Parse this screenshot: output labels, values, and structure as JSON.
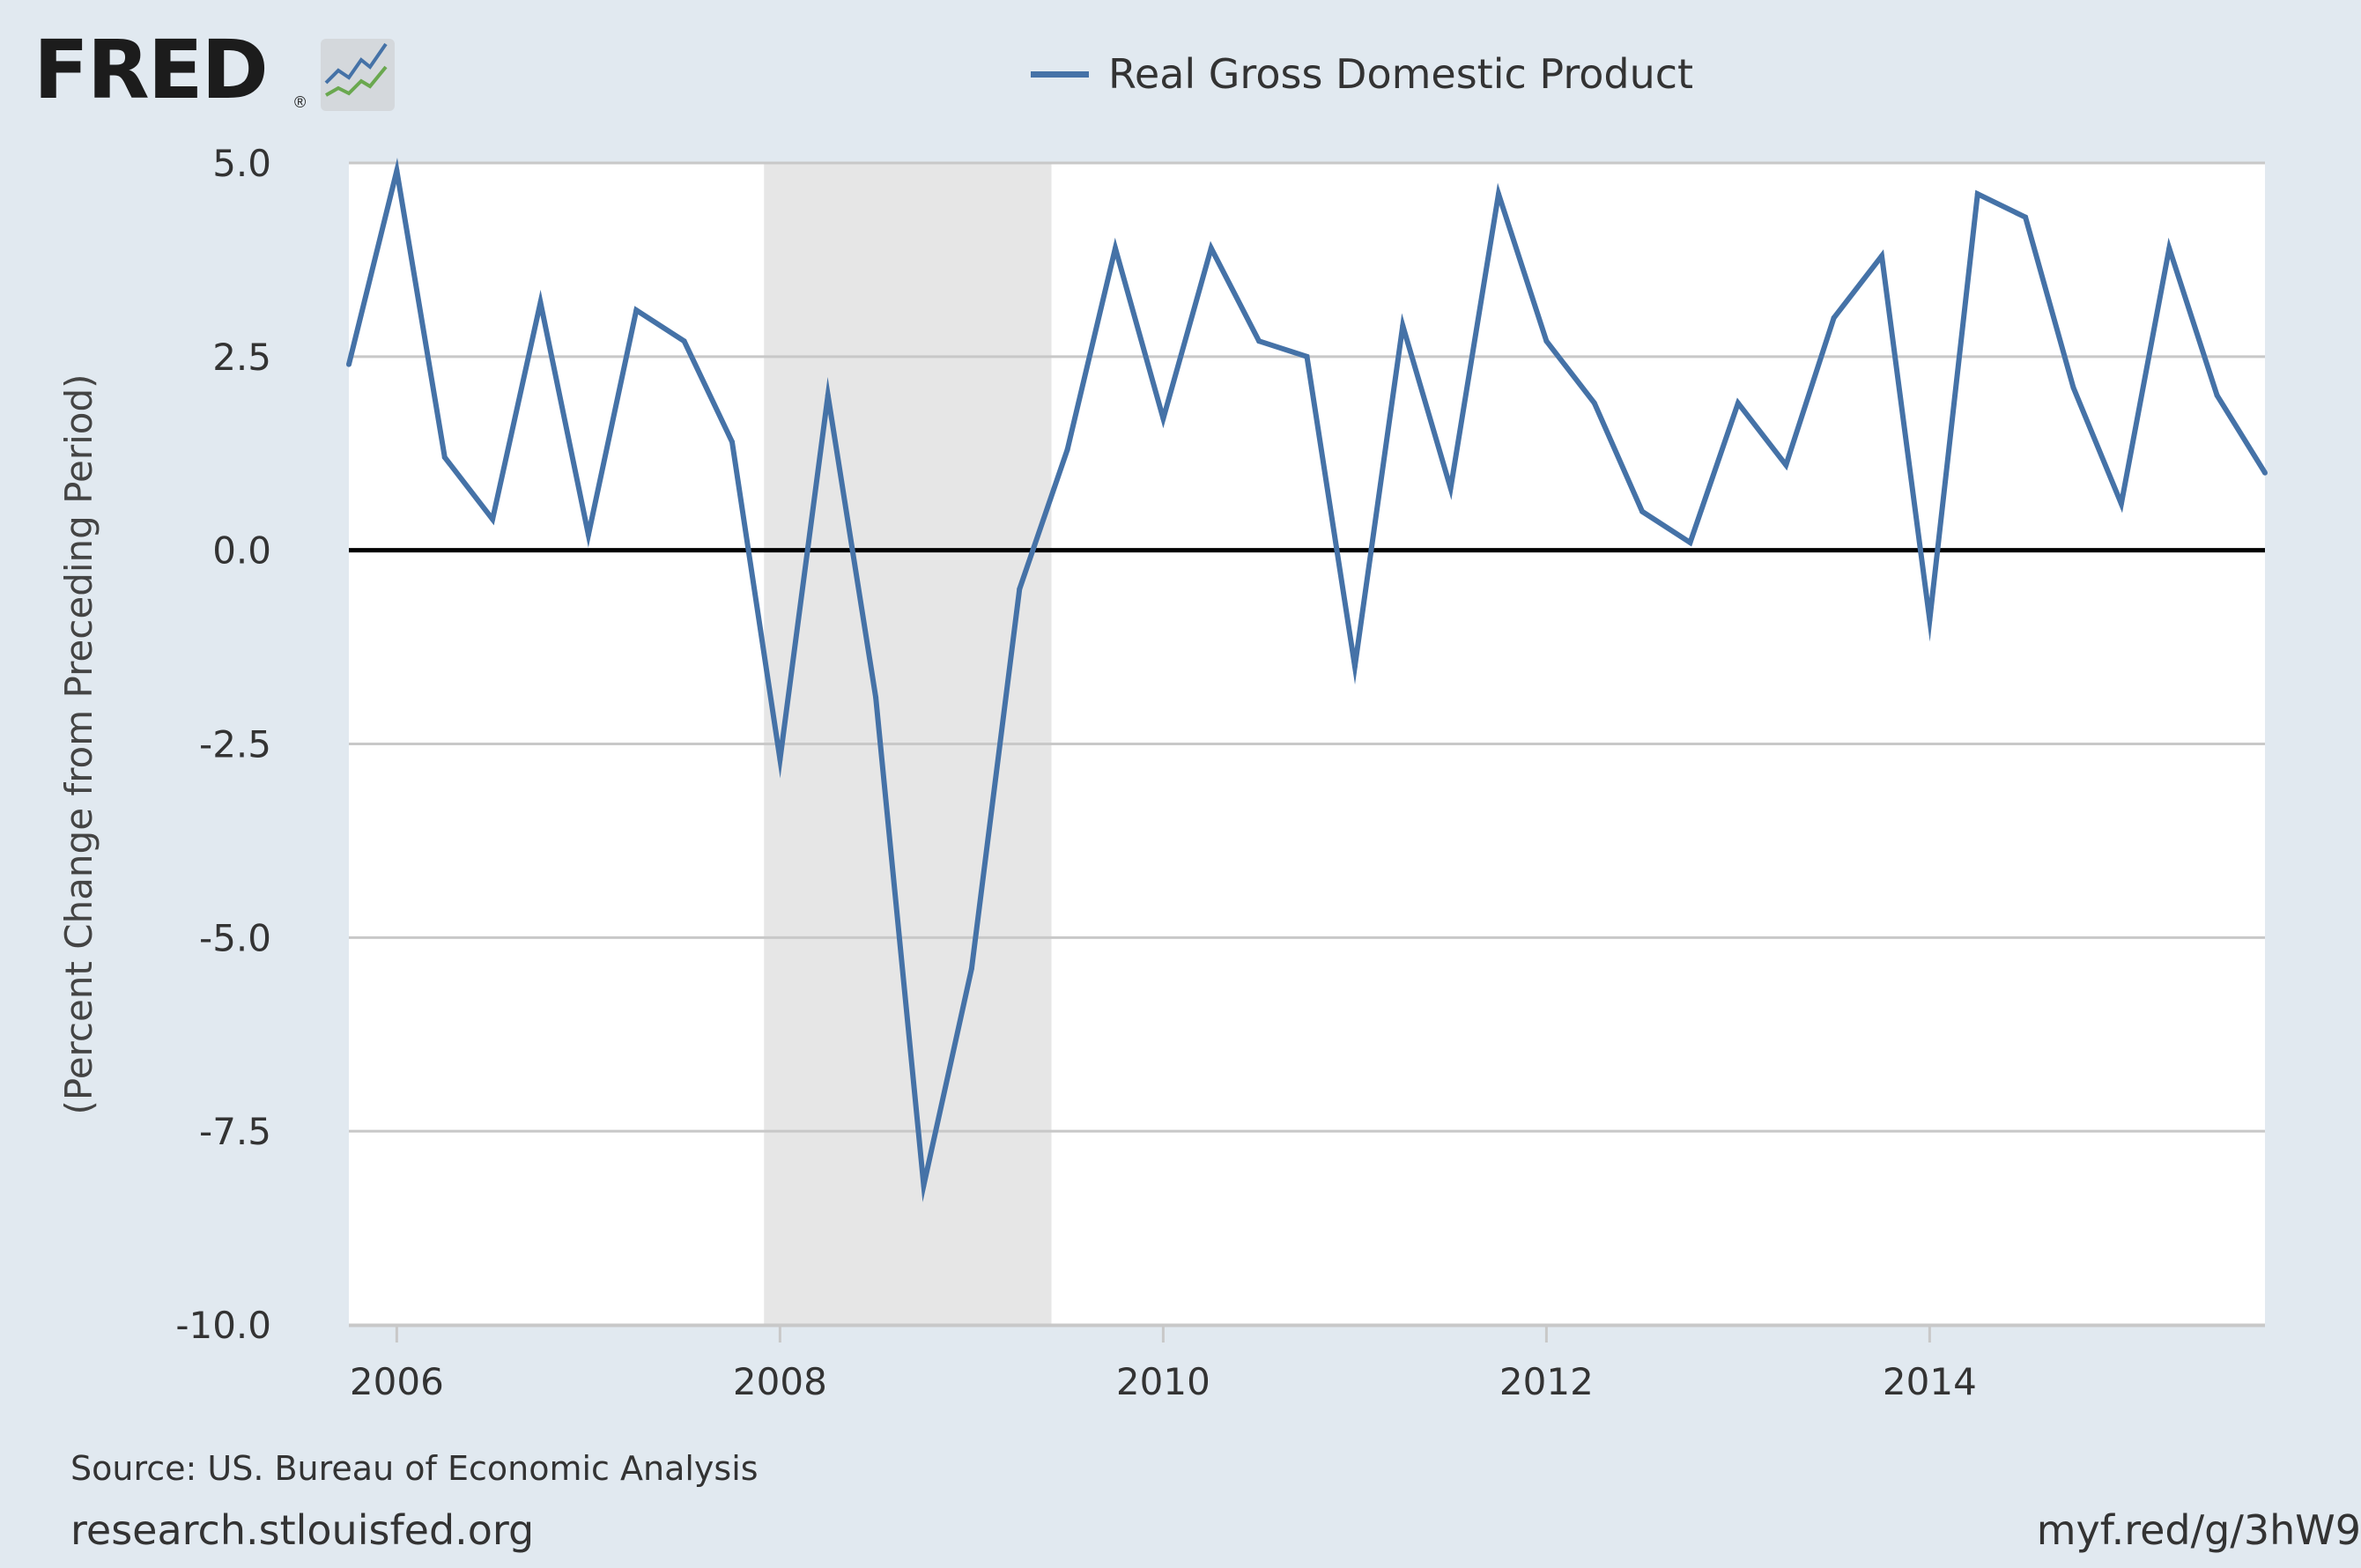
{
  "header": {
    "logo_text": "FRED",
    "logo_reg": "®",
    "logo_icon": "fred-trend-lines-icon"
  },
  "footer": {
    "source": "Source: US. Bureau of Economic Analysis",
    "site": "research.stlouisfed.org",
    "short_url": "myf.red/g/3hW9"
  },
  "colors": {
    "background": "#e1e9f0",
    "plot_background": "#ffffff",
    "series": "#4572a7",
    "recession": "#e6e6e6",
    "gridline": "#c8c8c8",
    "zero_line": "#000000"
  },
  "chart_data": {
    "type": "line",
    "title": "",
    "ylabel": "(Percent Change from Preceding Period)",
    "xlabel": "",
    "ylim": [
      -10,
      5
    ],
    "xlim": [
      "2005-10-01",
      "2015-10-01"
    ],
    "yticks": [
      "5.0",
      "2.5",
      "0.0",
      "-2.5",
      "-5.0",
      "-7.5",
      "-10.0"
    ],
    "xticks": [
      "2006",
      "2008",
      "2010",
      "2012",
      "2014"
    ],
    "grid": true,
    "legend": "top-center",
    "recessions": [
      {
        "start": "2007-12-01",
        "end": "2009-06-01"
      }
    ],
    "series": [
      {
        "name": "Real Gross Domestic Product",
        "x": [
          "2005-10-01",
          "2006-01-01",
          "2006-04-01",
          "2006-07-01",
          "2006-10-01",
          "2007-01-01",
          "2007-04-01",
          "2007-07-01",
          "2007-10-01",
          "2008-01-01",
          "2008-04-01",
          "2008-07-01",
          "2008-10-01",
          "2009-01-01",
          "2009-04-01",
          "2009-07-01",
          "2009-10-01",
          "2010-01-01",
          "2010-04-01",
          "2010-07-01",
          "2010-10-01",
          "2011-01-01",
          "2011-04-01",
          "2011-07-01",
          "2011-10-01",
          "2012-01-01",
          "2012-04-01",
          "2012-07-01",
          "2012-10-01",
          "2013-01-01",
          "2013-04-01",
          "2013-07-01",
          "2013-10-01",
          "2014-01-01",
          "2014-04-01",
          "2014-07-01",
          "2014-10-01",
          "2015-01-01",
          "2015-04-01",
          "2015-07-01",
          "2015-10-01"
        ],
        "y": [
          2.4,
          4.9,
          1.2,
          0.4,
          3.2,
          0.2,
          3.1,
          2.7,
          1.4,
          -2.7,
          2.0,
          -1.9,
          -8.2,
          -5.4,
          -0.5,
          1.3,
          3.9,
          1.7,
          3.9,
          2.7,
          2.5,
          -1.5,
          2.9,
          0.8,
          4.6,
          2.7,
          1.9,
          0.5,
          0.1,
          1.9,
          1.1,
          3.0,
          3.8,
          -0.9,
          4.6,
          4.3,
          2.1,
          0.6,
          3.9,
          2.0,
          1.0
        ]
      }
    ]
  }
}
